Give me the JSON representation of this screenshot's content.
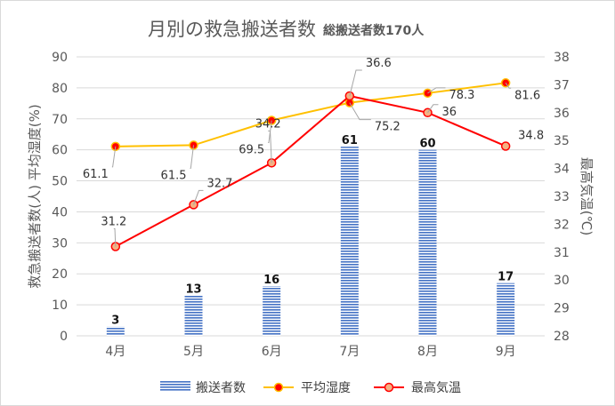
{
  "chart_data": {
    "type": "bar",
    "title": "月別の救急搬送者数",
    "subtitle": "総搬送者数170人",
    "categories": [
      "4月",
      "5月",
      "6月",
      "7月",
      "8月",
      "9月"
    ],
    "left_axis": {
      "label": "救急搬送者数(人)  平均湿度(%)",
      "min": 0,
      "max": 90,
      "step": 10
    },
    "right_axis": {
      "label": "最高気温(℃)",
      "min": 28,
      "max": 38,
      "step": 1
    },
    "grid": true,
    "legend_position": "bottom",
    "series": [
      {
        "name": "搬送者数",
        "type": "bar",
        "axis": "left",
        "color": "#4472C4",
        "values": [
          3,
          13,
          16,
          61,
          60,
          17
        ]
      },
      {
        "name": "平均湿度",
        "type": "line",
        "axis": "left",
        "color": "#FFC000",
        "marker_color": "#FF0000",
        "values": [
          61.1,
          61.5,
          69.5,
          75.2,
          78.3,
          81.6
        ]
      },
      {
        "name": "最高気温",
        "type": "line",
        "axis": "right",
        "color": "#FF0000",
        "marker_color": "#F4B183",
        "values": [
          31.2,
          32.7,
          34.2,
          36.6,
          36,
          34.8
        ]
      }
    ]
  }
}
